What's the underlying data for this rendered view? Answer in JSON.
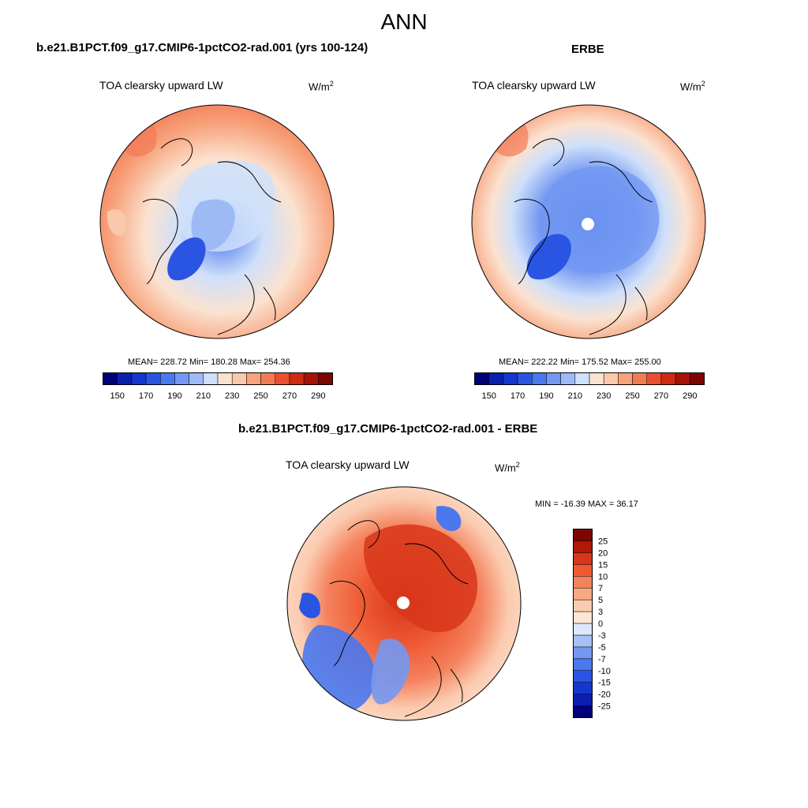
{
  "title": "ANN",
  "panels": [
    {
      "case": "b.e21.B1PCT.f09_g17.CMIP6-1pctCO2-rad.001 (yrs 100-124)",
      "variable": "TOA clearsky upward LW",
      "units_base": "W/m",
      "units_exp": "2",
      "stats": "MEAN= 228.72  Min= 180.28  Max= 254.36"
    },
    {
      "case": "ERBE",
      "variable": "TOA clearsky upward LW",
      "units_base": "W/m",
      "units_exp": "2",
      "stats": "MEAN= 222.22  Min= 175.52  Max= 255.00"
    },
    {
      "case": "b.e21.B1PCT.f09_g17.CMIP6-1pctCO2-rad.001 - ERBE",
      "variable": "TOA clearsky upward LW",
      "units_base": "W/m",
      "units_exp": "2",
      "stats": "MIN = -16.39 MAX =  36.17"
    }
  ],
  "colorbar_abs": {
    "colors": [
      "#00007a",
      "#0a1fae",
      "#1437d0",
      "#2a55e2",
      "#4a78ee",
      "#7398f2",
      "#9ebaf5",
      "#cfe0fa",
      "#fbe2d0",
      "#fac8aa",
      "#f7a37c",
      "#f27a55",
      "#e94f30",
      "#cf2a14",
      "#a81206",
      "#7d0502"
    ],
    "labels": [
      "150",
      "170",
      "190",
      "210",
      "230",
      "250",
      "270",
      "290"
    ]
  },
  "colorbar_diff": {
    "colors": [
      "#00007a",
      "#0a1fae",
      "#1437d0",
      "#2a55e2",
      "#4a78ee",
      "#7398f2",
      "#a6c1f6",
      "#dce8fb",
      "#fde6d6",
      "#fbcbb0",
      "#f8a883",
      "#f4825d",
      "#ee5a34",
      "#d8361a",
      "#b11806",
      "#7d0502"
    ],
    "labels": [
      "-25",
      "-20",
      "-15",
      "-10",
      "-7",
      "-5",
      "-3",
      "0",
      "3",
      "5",
      "7",
      "10",
      "15",
      "20",
      "25"
    ]
  }
}
